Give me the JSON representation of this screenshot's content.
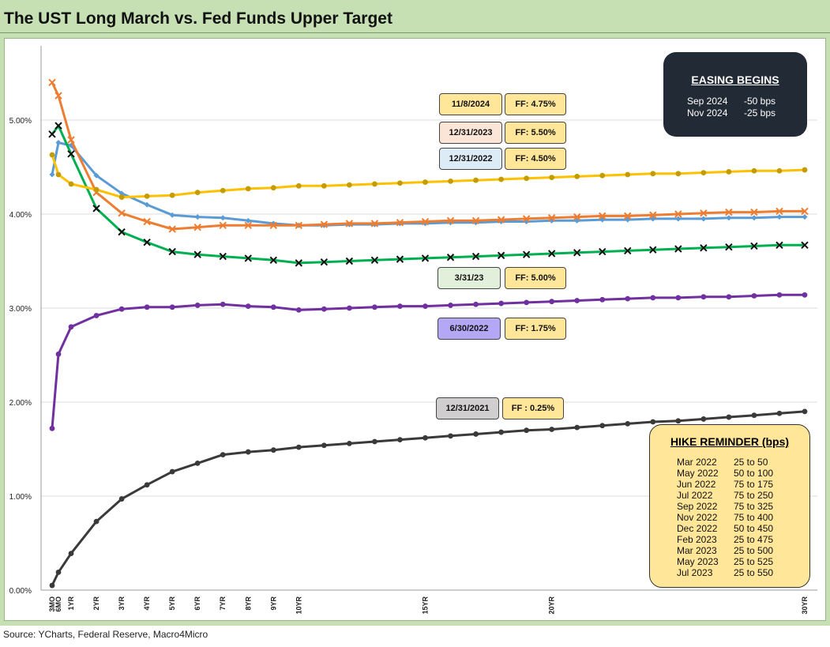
{
  "title": "The UST Long March vs. Fed Funds Upper Target",
  "source": "Source: YCharts, Federal Reserve, Macro4Micro",
  "chart_data": {
    "type": "line",
    "x_labels": [
      "3MO",
      "6MO",
      "1YR",
      "2YR",
      "3YR",
      "4YR",
      "5YR",
      "6YR",
      "7YR",
      "8YR",
      "9YR",
      "10YR",
      "15YR",
      "20YR",
      "30YR"
    ],
    "x_label_positions": [
      0.25,
      0.5,
      1,
      2,
      3,
      4,
      5,
      6,
      7,
      8,
      9,
      10,
      15,
      20,
      30
    ],
    "y_ticks": [
      "0.00%",
      "1.00%",
      "2.00%",
      "3.00%",
      "4.00%",
      "5.00%"
    ],
    "ylim": [
      0,
      5.5
    ],
    "grid": true,
    "series": [
      {
        "name": "12/31/2021",
        "color": "#3a3a3a",
        "marker": "dot",
        "x": [
          0.25,
          0.5,
          1,
          2,
          3,
          4,
          5,
          6,
          7,
          8,
          9,
          10,
          11,
          12,
          13,
          14,
          15,
          16,
          17,
          18,
          19,
          20,
          21,
          22,
          23,
          24,
          25,
          26,
          27,
          28,
          29,
          30
        ],
        "values": [
          0.05,
          0.19,
          0.39,
          0.73,
          0.97,
          1.12,
          1.26,
          1.35,
          1.44,
          1.47,
          1.49,
          1.52,
          1.54,
          1.56,
          1.58,
          1.6,
          1.62,
          1.64,
          1.66,
          1.68,
          1.7,
          1.71,
          1.73,
          1.75,
          1.77,
          1.79,
          1.8,
          1.82,
          1.84,
          1.86,
          1.88,
          1.9
        ]
      },
      {
        "name": "6/30/2022",
        "color": "#7030a0",
        "marker": "dot",
        "x": [
          0.25,
          0.5,
          1,
          2,
          3,
          4,
          5,
          6,
          7,
          8,
          9,
          10,
          11,
          12,
          13,
          14,
          15,
          16,
          17,
          18,
          19,
          20,
          21,
          22,
          23,
          24,
          25,
          26,
          27,
          28,
          29,
          30
        ],
        "values": [
          1.72,
          2.51,
          2.8,
          2.92,
          2.99,
          3.01,
          3.01,
          3.03,
          3.04,
          3.02,
          3.01,
          2.98,
          2.99,
          3.0,
          3.01,
          3.02,
          3.02,
          3.03,
          3.04,
          3.05,
          3.06,
          3.07,
          3.08,
          3.09,
          3.1,
          3.11,
          3.11,
          3.12,
          3.12,
          3.13,
          3.14,
          3.14
        ]
      },
      {
        "name": "12/31/2022",
        "color": "#5b9bd5",
        "marker": "diamond",
        "x": [
          0.25,
          0.5,
          1,
          2,
          3,
          4,
          5,
          6,
          7,
          8,
          9,
          10,
          11,
          12,
          13,
          14,
          15,
          16,
          17,
          18,
          19,
          20,
          21,
          22,
          23,
          24,
          25,
          26,
          27,
          28,
          29,
          30
        ],
        "values": [
          4.42,
          4.76,
          4.73,
          4.41,
          4.22,
          4.1,
          3.99,
          3.97,
          3.96,
          3.93,
          3.9,
          3.88,
          3.88,
          3.89,
          3.89,
          3.9,
          3.9,
          3.91,
          3.91,
          3.92,
          3.92,
          3.93,
          3.93,
          3.94,
          3.94,
          3.95,
          3.95,
          3.95,
          3.96,
          3.96,
          3.97,
          3.97
        ]
      },
      {
        "name": "3/31/23",
        "color": "#00b050",
        "marker": "x",
        "x": [
          0.25,
          0.5,
          1,
          2,
          3,
          4,
          5,
          6,
          7,
          8,
          9,
          10,
          11,
          12,
          13,
          14,
          15,
          16,
          17,
          18,
          19,
          20,
          21,
          22,
          23,
          24,
          25,
          26,
          27,
          28,
          29,
          30
        ],
        "values": [
          4.85,
          4.94,
          4.64,
          4.06,
          3.81,
          3.7,
          3.6,
          3.57,
          3.55,
          3.53,
          3.51,
          3.48,
          3.49,
          3.5,
          3.51,
          3.52,
          3.53,
          3.54,
          3.55,
          3.56,
          3.57,
          3.58,
          3.59,
          3.6,
          3.61,
          3.62,
          3.63,
          3.64,
          3.65,
          3.66,
          3.67,
          3.67
        ]
      },
      {
        "name": "12/31/2023",
        "color": "#ed7d31",
        "marker": "x",
        "x": [
          0.25,
          0.5,
          1,
          2,
          3,
          4,
          5,
          6,
          7,
          8,
          9,
          10,
          11,
          12,
          13,
          14,
          15,
          16,
          17,
          18,
          19,
          20,
          21,
          22,
          23,
          24,
          25,
          26,
          27,
          28,
          29,
          30
        ],
        "values": [
          5.4,
          5.26,
          4.79,
          4.23,
          4.01,
          3.92,
          3.84,
          3.86,
          3.88,
          3.88,
          3.88,
          3.88,
          3.89,
          3.9,
          3.9,
          3.91,
          3.92,
          3.93,
          3.93,
          3.94,
          3.95,
          3.96,
          3.97,
          3.98,
          3.98,
          3.99,
          4.0,
          4.01,
          4.02,
          4.02,
          4.03,
          4.03
        ]
      },
      {
        "name": "11/8/2024",
        "color": "#ffc000",
        "dot_color": "#c49b00",
        "marker": "dot",
        "x": [
          0.25,
          0.5,
          1,
          2,
          3,
          4,
          5,
          6,
          7,
          8,
          9,
          10,
          11,
          12,
          13,
          14,
          15,
          16,
          17,
          18,
          19,
          20,
          21,
          22,
          23,
          24,
          25,
          26,
          27,
          28,
          29,
          30
        ],
        "values": [
          4.63,
          4.42,
          4.32,
          4.26,
          4.18,
          4.19,
          4.2,
          4.23,
          4.25,
          4.27,
          4.28,
          4.3,
          4.3,
          4.31,
          4.32,
          4.33,
          4.34,
          4.35,
          4.36,
          4.37,
          4.38,
          4.39,
          4.4,
          4.41,
          4.42,
          4.43,
          4.43,
          4.44,
          4.45,
          4.46,
          4.46,
          4.47
        ]
      }
    ],
    "annotations": [
      {
        "date": "11/8/2024",
        "ff": "FF: 4.75%",
        "date_bg": "#ffe699"
      },
      {
        "date": "12/31/2023",
        "ff": "FF: 5.50%",
        "date_bg": "#fbe5d6"
      },
      {
        "date": "12/31/2022",
        "ff": "FF: 4.50%",
        "date_bg": "#ddebf7"
      },
      {
        "date": "3/31/23",
        "ff": "FF: 5.00%",
        "date_bg": "#e2efda"
      },
      {
        "date": "6/30/2022",
        "ff": "FF: 1.75%",
        "date_bg": "#b4a7f5"
      },
      {
        "date": "12/31/2021",
        "ff": "FF : 0.25%",
        "date_bg": "#d0cece"
      }
    ]
  },
  "easing": {
    "title": "EASING BEGINS",
    "rows": [
      {
        "date": "Sep 2024",
        "change": "-50 bps"
      },
      {
        "date": "Nov 2024",
        "change": "-25 bps"
      }
    ]
  },
  "hike_reminder": {
    "title": "HIKE REMINDER (bps)",
    "rows": [
      {
        "date": "Mar 2022",
        "range": "25 to 50"
      },
      {
        "date": "May 2022",
        "range": "50 to 100"
      },
      {
        "date": "Jun 2022",
        "range": "75 to 175"
      },
      {
        "date": "Jul 2022",
        "range": "75 to 250"
      },
      {
        "date": "Sep 2022",
        "range": "75 to 325"
      },
      {
        "date": "Nov 2022",
        "range": "75 to 400"
      },
      {
        "date": "Dec 2022",
        "range": "50 to 450"
      },
      {
        "date": "Feb 2023",
        "range": "25 to 475"
      },
      {
        "date": "Mar 2023",
        "range": "25 to 500"
      },
      {
        "date": "May 2023",
        "range": "25 to 525"
      },
      {
        "date": "Jul 2023",
        "range": "25 to 550"
      }
    ]
  }
}
